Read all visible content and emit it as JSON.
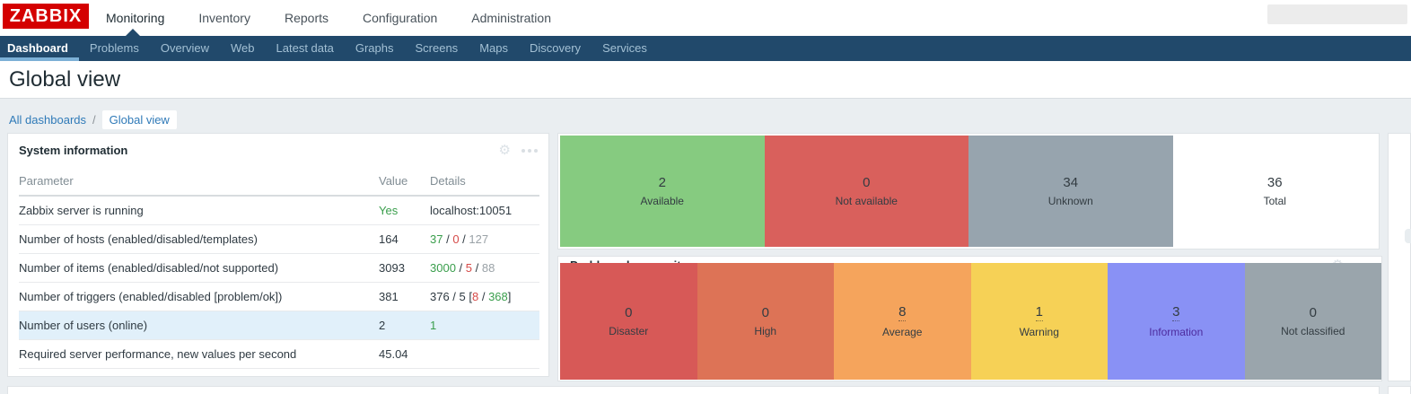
{
  "colors": {
    "brand_red": "#d40000",
    "nav_blue": "#21496b",
    "link_blue": "#2f7ab8",
    "ok_green": "#3a9e4c",
    "alert_red": "#d64a48"
  },
  "header": {
    "logo_text": "ZABBIX",
    "menu": [
      "Monitoring",
      "Inventory",
      "Reports",
      "Configuration",
      "Administration"
    ],
    "active_menu": "Monitoring",
    "search_value": "",
    "gear_glyph": "⚙"
  },
  "subnav": {
    "items": [
      "Dashboard",
      "Problems",
      "Overview",
      "Web",
      "Latest data",
      "Graphs",
      "Screens",
      "Maps",
      "Discovery",
      "Services"
    ],
    "active_item": "Dashboard"
  },
  "page": {
    "title": "Global view",
    "breadcrumb_root": "All dashboards",
    "breadcrumb_sep": "/",
    "breadcrumb_current": "Global view"
  },
  "system_info": {
    "title": "System information",
    "columns": [
      "Parameter",
      "Value",
      "Details"
    ],
    "rows": [
      {
        "param": "Zabbix server is running",
        "value": "Yes",
        "value_color": "#3a9e4c",
        "details": [
          {
            "t": "localhost:10051",
            "c": "dark"
          }
        ]
      },
      {
        "param": "Number of hosts (enabled/disabled/templates)",
        "value": "164",
        "details": [
          {
            "t": "37",
            "c": "green"
          },
          {
            "t": " / ",
            "c": "dark"
          },
          {
            "t": "0",
            "c": "red"
          },
          {
            "t": " / ",
            "c": "dark"
          },
          {
            "t": "127",
            "c": "gray"
          }
        ]
      },
      {
        "param": "Number of items (enabled/disabled/not supported)",
        "value": "3093",
        "details": [
          {
            "t": "3000",
            "c": "green"
          },
          {
            "t": " / ",
            "c": "dark"
          },
          {
            "t": "5",
            "c": "red"
          },
          {
            "t": " / ",
            "c": "dark"
          },
          {
            "t": "88",
            "c": "gray"
          }
        ]
      },
      {
        "param": "Number of triggers (enabled/disabled [problem/ok])",
        "value": "381",
        "details": [
          {
            "t": "376 / 5 [",
            "c": "dark"
          },
          {
            "t": "8",
            "c": "red"
          },
          {
            "t": " / ",
            "c": "dark"
          },
          {
            "t": "368",
            "c": "green"
          },
          {
            "t": "]",
            "c": "dark"
          }
        ]
      },
      {
        "param": "Number of users (online)",
        "value": "2",
        "highlight": true,
        "details": [
          {
            "t": "1",
            "c": "green"
          }
        ]
      },
      {
        "param": "Required server performance, new values per second",
        "value": "45.04",
        "details": []
      }
    ]
  },
  "host_availability": {
    "cells": [
      {
        "count": "2",
        "label": "Available",
        "bg": "#86cb80"
      },
      {
        "count": "0",
        "label": "Not available",
        "bg": "#d9605c"
      },
      {
        "count": "34",
        "label": "Unknown",
        "bg": "#97a4ae"
      },
      {
        "count": "36",
        "label": "Total",
        "bg": "#ffffff"
      }
    ]
  },
  "problems_by_severity": {
    "title": "Problems by severity",
    "cells": [
      {
        "count": "0",
        "label": "Disaster",
        "bg": "#d75957",
        "link": false
      },
      {
        "count": "0",
        "label": "High",
        "bg": "#dd7356",
        "link": false
      },
      {
        "count": "8",
        "label": "Average",
        "bg": "#f5a45c",
        "link": true
      },
      {
        "count": "1",
        "label": "Warning",
        "bg": "#f6d156",
        "link": true
      },
      {
        "count": "3",
        "label": "Information",
        "bg": "#8991f5",
        "link": true,
        "label_color": "#4d2b9e"
      },
      {
        "count": "0",
        "label": "Not classified",
        "bg": "#9aa5ac",
        "link": false
      }
    ]
  }
}
